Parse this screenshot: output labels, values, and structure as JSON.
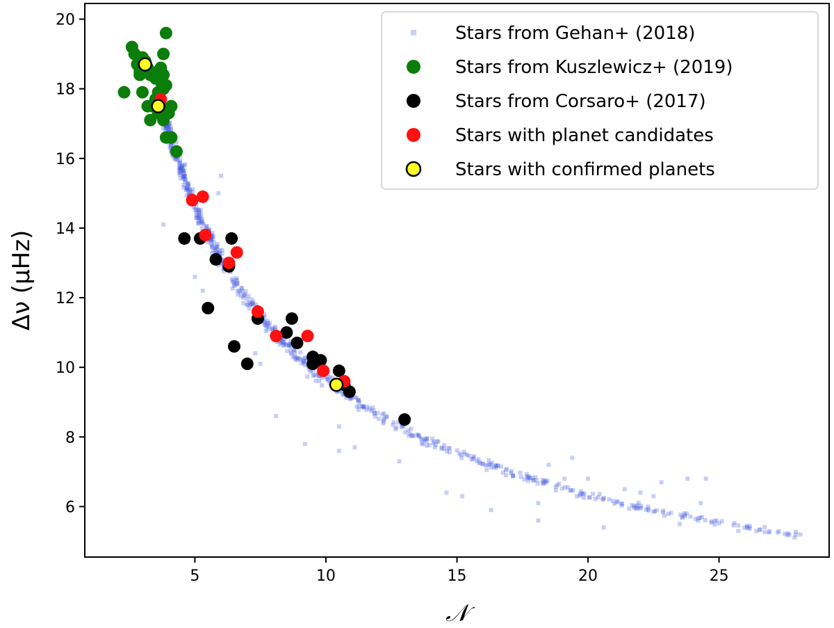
{
  "chart_data": {
    "type": "scatter",
    "xlabel": "𝒩",
    "ylabel": "Δν (μHz)",
    "xlim": [
      0.8,
      29.2
    ],
    "ylim": [
      4.55,
      20.45
    ],
    "xticks": [
      5,
      10,
      15,
      20,
      25
    ],
    "yticks": [
      6,
      8,
      10,
      12,
      14,
      16,
      18,
      20
    ],
    "grid": false,
    "legend_position": "top-right",
    "series": [
      {
        "name": "Stars from Gehan+ (2018)",
        "marker": "square",
        "color": "#4a5fe0",
        "trend": {
          "relation": "y = 38.8 * x^-0.605",
          "x_range": [
            3.7,
            28.1
          ],
          "count": 800
        },
        "outliers": [
          [
            3.8,
            14.1
          ],
          [
            4.1,
            16.5
          ],
          [
            5.0,
            12.6
          ],
          [
            5.3,
            12.2
          ],
          [
            5.9,
            15.0
          ],
          [
            6.0,
            15.5
          ],
          [
            7.3,
            10.4
          ],
          [
            7.5,
            10.1
          ],
          [
            8.1,
            8.6
          ],
          [
            9.2,
            7.8
          ],
          [
            10.5,
            8.3
          ],
          [
            10.5,
            7.6
          ],
          [
            11.1,
            7.7
          ],
          [
            12.8,
            7.3
          ],
          [
            14.6,
            6.4
          ],
          [
            15.2,
            6.3
          ],
          [
            16.3,
            5.9
          ],
          [
            18.1,
            6.1
          ],
          [
            18.1,
            5.6
          ],
          [
            18.5,
            7.2
          ],
          [
            19.1,
            6.8
          ],
          [
            19.4,
            7.4
          ],
          [
            20.0,
            6.8
          ],
          [
            20.6,
            5.4
          ],
          [
            21.4,
            6.5
          ],
          [
            22.0,
            6.4
          ],
          [
            22.5,
            6.3
          ],
          [
            22.8,
            6.7
          ],
          [
            23.5,
            5.5
          ],
          [
            23.8,
            6.8
          ],
          [
            24.3,
            6.1
          ],
          [
            24.5,
            6.8
          ],
          [
            24.9,
            5.6
          ],
          [
            28.1,
            5.2
          ]
        ]
      },
      {
        "name": "Stars from Kuszlewicz+ (2019)",
        "marker": "circle",
        "color": "#0b7d0b",
        "points": [
          [
            2.6,
            19.2
          ],
          [
            2.7,
            19.0
          ],
          [
            2.8,
            18.7
          ],
          [
            2.9,
            18.5
          ],
          [
            3.0,
            18.9
          ],
          [
            3.1,
            18.8
          ],
          [
            3.2,
            18.6
          ],
          [
            3.3,
            18.4
          ],
          [
            3.5,
            18.3
          ],
          [
            3.6,
            18.5
          ],
          [
            3.7,
            18.6
          ],
          [
            3.8,
            18.4
          ],
          [
            3.7,
            18.2
          ],
          [
            3.8,
            18.0
          ],
          [
            3.6,
            17.9
          ],
          [
            3.5,
            17.7
          ],
          [
            3.4,
            17.5
          ],
          [
            3.6,
            17.3
          ],
          [
            3.8,
            17.1
          ],
          [
            4.0,
            17.3
          ],
          [
            4.1,
            17.5
          ],
          [
            2.3,
            17.9
          ],
          [
            3.0,
            17.9
          ],
          [
            3.2,
            17.5
          ],
          [
            3.3,
            17.1
          ],
          [
            3.9,
            19.6
          ],
          [
            3.8,
            19.0
          ],
          [
            3.9,
            16.6
          ],
          [
            4.1,
            16.6
          ],
          [
            4.3,
            16.2
          ],
          [
            2.9,
            18.4
          ],
          [
            3.9,
            18.1
          ]
        ]
      },
      {
        "name": "Stars from Corsaro+ (2017)",
        "marker": "circle",
        "color": "#000000",
        "points": [
          [
            4.6,
            13.7
          ],
          [
            5.2,
            13.7
          ],
          [
            5.5,
            11.7
          ],
          [
            5.8,
            13.1
          ],
          [
            6.3,
            12.9
          ],
          [
            6.4,
            13.7
          ],
          [
            6.5,
            10.6
          ],
          [
            7.0,
            10.1
          ],
          [
            7.4,
            11.4
          ],
          [
            8.5,
            11.0
          ],
          [
            8.7,
            11.4
          ],
          [
            8.9,
            10.7
          ],
          [
            9.5,
            10.3
          ],
          [
            9.5,
            10.1
          ],
          [
            9.8,
            10.2
          ],
          [
            10.5,
            9.9
          ],
          [
            10.7,
            9.5
          ],
          [
            10.9,
            9.3
          ],
          [
            13.0,
            8.5
          ]
        ]
      },
      {
        "name": "Stars with planet candidates",
        "marker": "circle",
        "color": "#ff1111",
        "points": [
          [
            3.7,
            17.7
          ],
          [
            4.9,
            14.8
          ],
          [
            5.3,
            14.9
          ],
          [
            5.4,
            13.8
          ],
          [
            6.3,
            13.0
          ],
          [
            6.6,
            13.3
          ],
          [
            7.4,
            11.6
          ],
          [
            8.1,
            10.9
          ],
          [
            9.3,
            10.9
          ],
          [
            9.9,
            9.9
          ],
          [
            10.7,
            9.6
          ]
        ]
      },
      {
        "name": "Stars with confirmed planets",
        "marker": "circle-outlined",
        "color": "#ffff22",
        "points": [
          [
            3.1,
            18.7
          ],
          [
            3.6,
            17.5
          ],
          [
            10.4,
            9.5
          ]
        ]
      }
    ]
  }
}
